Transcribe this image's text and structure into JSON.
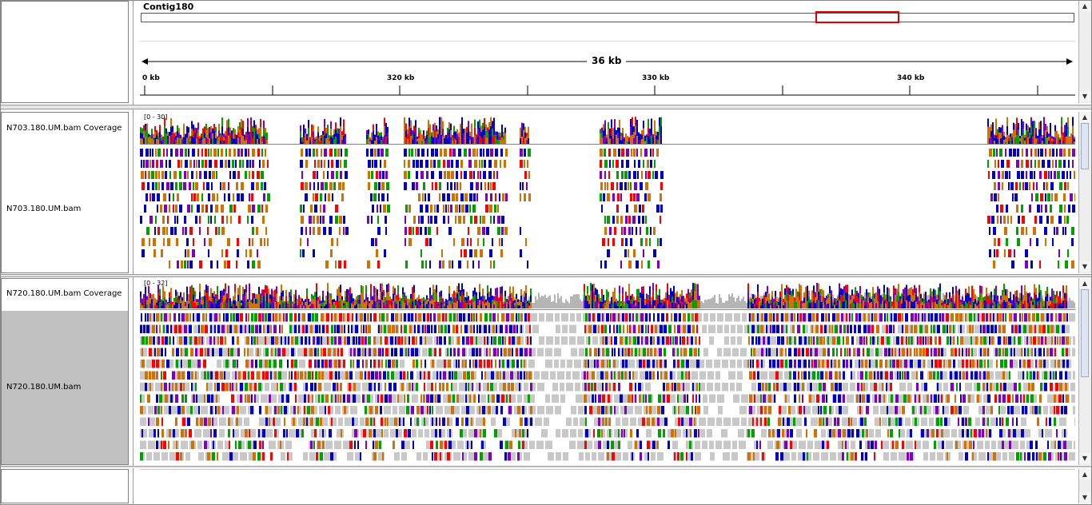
{
  "header": {
    "chromosome": "Contig180",
    "span_label": "36 kb",
    "ticks": [
      {
        "label": "0 kb"
      },
      {
        "label": "320 kb"
      },
      {
        "label": "330 kb"
      },
      {
        "label": "340 kb"
      }
    ]
  },
  "tracks": [
    {
      "coverage_name": "N703.180.UM.bam Coverage",
      "coverage_range": "[0 - 30]",
      "alignment_name": "N703.180.UM.bam",
      "selected": false
    },
    {
      "coverage_name": "N720.180.UM.bam Coverage",
      "coverage_range": "[0 - 32]",
      "alignment_name": "N720.180.UM.bam",
      "selected": true
    }
  ],
  "colors": {
    "grid_border": "#808080",
    "selected_name_bg": "#c0c0c0",
    "roi_box": "#e00000",
    "coverage_gray": "#b5b5b5",
    "read_gray": "#c8c8c8",
    "base_A": "#00a000",
    "base_C": "#0000c8",
    "base_G": "#d17105",
    "base_T": "#ff0000",
    "insertion": "#8000c0"
  },
  "icons": [
    "scroll-up-icon",
    "scroll-down-icon"
  ]
}
